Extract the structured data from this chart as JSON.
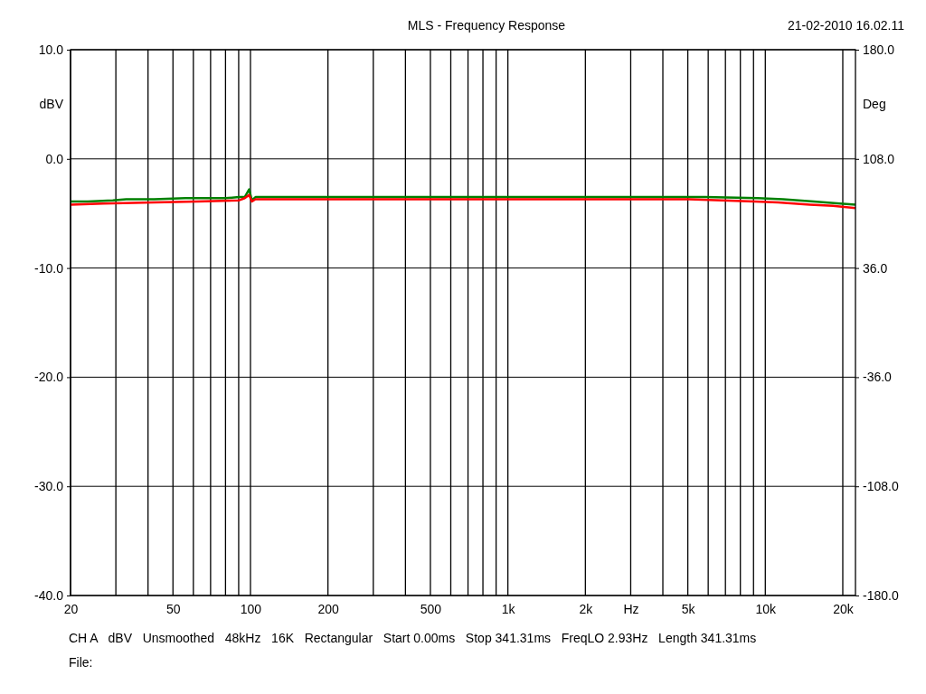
{
  "chart_data": {
    "type": "line",
    "title": "MLS - Frequency Response",
    "ylabel": "dBV",
    "y2label": "Deg",
    "annotations": [
      "21-02-2010 16.02.11",
      "CH A   dBV   Unsmoothed   48kHz   16K   Rectangular   Start 0.00ms   Stop 341.31ms   FreqLO 2.93Hz   Length 341.31ms",
      "File:"
    ],
    "log": "x",
    "grid": true,
    "xlim": [
      20,
      22400
    ],
    "ylim": [
      -40,
      10
    ],
    "y2lim": [
      -180,
      180
    ],
    "xticks": [
      20,
      {
        "value": 30,
        "label": null
      },
      {
        "value": 40,
        "label": null
      },
      50,
      {
        "value": 60,
        "label": null
      },
      {
        "value": 70,
        "label": null
      },
      {
        "value": 80,
        "label": null
      },
      {
        "value": 90,
        "label": null
      },
      100,
      200,
      {
        "value": 300,
        "label": null
      },
      {
        "value": 400,
        "label": null
      },
      500,
      {
        "value": 600,
        "label": null
      },
      {
        "value": 700,
        "label": null
      },
      {
        "value": 800,
        "label": null
      },
      {
        "value": 900,
        "label": null
      },
      {
        "value": 1000,
        "label": "1k"
      },
      {
        "value": 2000,
        "label": "2k"
      },
      {
        "value": 3000,
        "label": "Hz"
      },
      {
        "value": 4000,
        "label": null
      },
      {
        "value": 5000,
        "label": "5k"
      },
      {
        "value": 6000,
        "label": null
      },
      {
        "value": 7000,
        "label": null
      },
      {
        "value": 8000,
        "label": null
      },
      {
        "value": 9000,
        "label": null
      },
      {
        "value": 10000,
        "label": "10k"
      },
      {
        "value": 20000,
        "label": "20k"
      }
    ],
    "yticks": [
      {
        "value": -40,
        "label": "-40.0"
      },
      {
        "value": -30,
        "label": "-30.0"
      },
      {
        "value": -20,
        "label": "-20.0"
      },
      {
        "value": -10,
        "label": "-10.0"
      },
      {
        "value": 0,
        "label": "0.0"
      },
      {
        "value": 10,
        "label": "10.0"
      }
    ],
    "y2ticks": [
      {
        "value": -180,
        "label": "-180.0"
      },
      {
        "value": -108,
        "label": "-108.0"
      },
      {
        "value": -36,
        "label": "-36.0"
      },
      {
        "value": 36,
        "label": "36.0"
      },
      {
        "value": 108,
        "label": "108.0"
      },
      {
        "value": 180,
        "label": "180.0"
      }
    ],
    "series": [
      {
        "color": "#008000",
        "x": [
          20,
          23.3,
          29.2,
          32.9,
          42.2,
          55.9,
          80.1,
          90.4,
          95,
          98.8,
          101.3,
          104.6,
          607,
          5846,
          9340,
          11720,
          15430,
          19500,
          22390
        ],
        "values": [
          -3.9,
          -3.9,
          -3.8,
          -3.7,
          -3.7,
          -3.6,
          -3.6,
          -3.5,
          -3.5,
          -2.8,
          -3.8,
          -3.5,
          -3.5,
          -3.5,
          -3.6,
          -3.7,
          -3.9,
          -4.1,
          -4.2
        ]
      },
      {
        "color": "#ff0000",
        "x": [
          20,
          26.8,
          42.2,
          62,
          90.4,
          95,
          98.8,
          101.3,
          104.6,
          607,
          5000,
          9100,
          11200,
          14900,
          18300,
          22390
        ],
        "values": [
          -4.2,
          -4.1,
          -4.0,
          -3.9,
          -3.8,
          -3.6,
          -3.3,
          -3.9,
          -3.7,
          -3.7,
          -3.7,
          -3.9,
          -4.0,
          -4.2,
          -4.3,
          -4.5
        ]
      }
    ]
  }
}
